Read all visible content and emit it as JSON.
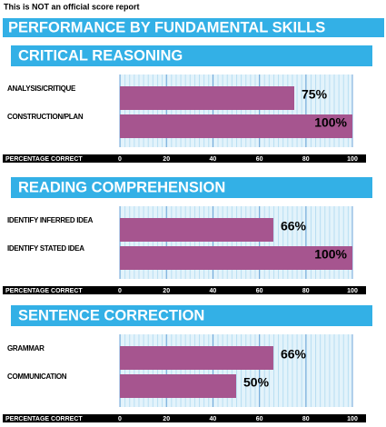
{
  "notice": "This is NOT an official score report",
  "title": "PERFORMANCE BY FUNDAMENTAL SKILLS",
  "chart_data": [
    {
      "type": "bar",
      "orientation": "horizontal",
      "title": "CRITICAL REASONING",
      "categories": [
        "ANALYSIS/CRITIQUE",
        "CONSTRUCTION/PLAN"
      ],
      "values": [
        75,
        100
      ],
      "value_labels": [
        "75%",
        "100%"
      ],
      "color": "#a6558f",
      "xlabel": "PERCENTAGE CORRECT",
      "xlim": [
        0,
        100
      ],
      "xticks": [
        0,
        20,
        40,
        60,
        80,
        100
      ],
      "grid": true
    },
    {
      "type": "bar",
      "orientation": "horizontal",
      "title": "READING COMPREHENSION",
      "categories": [
        "IDENTIFY INFERRED IDEA",
        "IDENTIFY STATED IDEA"
      ],
      "values": [
        66,
        100
      ],
      "value_labels": [
        "66%",
        "100%"
      ],
      "color": "#a6558f",
      "xlabel": "PERCENTAGE CORRECT",
      "xlim": [
        0,
        100
      ],
      "xticks": [
        0,
        20,
        40,
        60,
        80,
        100
      ],
      "grid": true
    },
    {
      "type": "bar",
      "orientation": "horizontal",
      "title": "SENTENCE CORRECTION",
      "categories": [
        "GRAMMAR",
        "COMMUNICATION"
      ],
      "values": [
        66,
        50
      ],
      "value_labels": [
        "66%",
        "50%"
      ],
      "color": "#a6558f",
      "xlabel": "PERCENTAGE CORRECT",
      "xlim": [
        0,
        100
      ],
      "xticks": [
        0,
        20,
        40,
        60,
        80,
        100
      ],
      "grid": true
    }
  ]
}
